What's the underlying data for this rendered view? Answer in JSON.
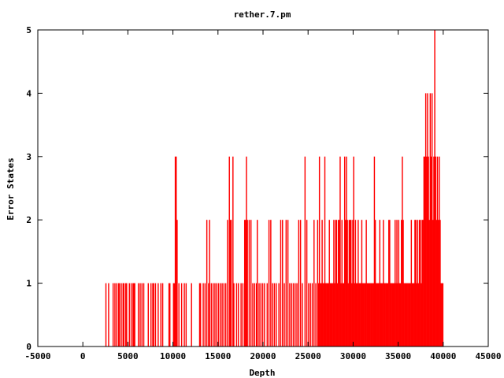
{
  "chart_data": {
    "type": "bar",
    "title": "rether.7.pm",
    "xlabel": "Depth",
    "ylabel": "Error States",
    "xlim": [
      -5000,
      45000
    ],
    "ylim": [
      0,
      5
    ],
    "xticks": [
      -5000,
      0,
      5000,
      10000,
      15000,
      20000,
      25000,
      30000,
      35000,
      40000,
      45000
    ],
    "yticks": [
      0,
      1,
      2,
      3,
      4,
      5
    ],
    "grid": false,
    "legend": "none",
    "series": [
      {
        "color": "#ff0000",
        "points": [
          [
            2500,
            1
          ],
          [
            2800,
            1
          ],
          [
            3300,
            1
          ],
          [
            3500,
            1
          ],
          [
            3700,
            1
          ],
          [
            3900,
            1
          ],
          [
            4000,
            1
          ],
          [
            4200,
            1
          ],
          [
            4400,
            1
          ],
          [
            4500,
            1
          ],
          [
            4700,
            1
          ],
          [
            4800,
            1
          ],
          [
            5100,
            1
          ],
          [
            5300,
            1
          ],
          [
            5500,
            1
          ],
          [
            5600,
            1
          ],
          [
            5700,
            1
          ],
          [
            6100,
            1
          ],
          [
            6300,
            1
          ],
          [
            6500,
            1
          ],
          [
            6700,
            1
          ],
          [
            7200,
            1
          ],
          [
            7500,
            1
          ],
          [
            7700,
            1
          ],
          [
            7800,
            1
          ],
          [
            8000,
            1
          ],
          [
            8300,
            1
          ],
          [
            8600,
            1
          ],
          [
            8800,
            1
          ],
          [
            9500,
            1
          ],
          [
            9600,
            1
          ],
          [
            10000,
            1
          ],
          [
            10100,
            1
          ],
          [
            10200,
            3
          ],
          [
            10300,
            3
          ],
          [
            10400,
            2
          ],
          [
            10600,
            1
          ],
          [
            10900,
            1
          ],
          [
            11200,
            1
          ],
          [
            11400,
            1
          ],
          [
            12000,
            1
          ],
          [
            12900,
            1
          ],
          [
            13000,
            1
          ],
          [
            13300,
            1
          ],
          [
            13500,
            1
          ],
          [
            13700,
            2
          ],
          [
            13900,
            1
          ],
          [
            14000,
            2
          ],
          [
            14200,
            1
          ],
          [
            14400,
            1
          ],
          [
            14600,
            1
          ],
          [
            14800,
            1
          ],
          [
            15000,
            1
          ],
          [
            15200,
            1
          ],
          [
            15400,
            1
          ],
          [
            15600,
            1
          ],
          [
            15800,
            1
          ],
          [
            16000,
            2
          ],
          [
            16200,
            3
          ],
          [
            16300,
            2
          ],
          [
            16400,
            2
          ],
          [
            16600,
            3
          ],
          [
            16700,
            1
          ],
          [
            17000,
            1
          ],
          [
            17200,
            1
          ],
          [
            17500,
            1
          ],
          [
            17700,
            1
          ],
          [
            17900,
            2
          ],
          [
            18000,
            2
          ],
          [
            18100,
            3
          ],
          [
            18200,
            2
          ],
          [
            18400,
            2
          ],
          [
            18600,
            2
          ],
          [
            18800,
            1
          ],
          [
            19000,
            1
          ],
          [
            19200,
            1
          ],
          [
            19300,
            2
          ],
          [
            19500,
            1
          ],
          [
            19700,
            1
          ],
          [
            19900,
            1
          ],
          [
            20100,
            1
          ],
          [
            20400,
            1
          ],
          [
            20600,
            2
          ],
          [
            20800,
            2
          ],
          [
            21000,
            1
          ],
          [
            21200,
            1
          ],
          [
            21400,
            1
          ],
          [
            21700,
            1
          ],
          [
            21900,
            2
          ],
          [
            22100,
            2
          ],
          [
            22300,
            1
          ],
          [
            22500,
            2
          ],
          [
            22700,
            2
          ],
          [
            22900,
            1
          ],
          [
            23100,
            1
          ],
          [
            23300,
            1
          ],
          [
            23500,
            1
          ],
          [
            23700,
            1
          ],
          [
            23900,
            2
          ],
          [
            24100,
            2
          ],
          [
            24300,
            1
          ],
          [
            24600,
            3
          ],
          [
            24800,
            2
          ],
          [
            25000,
            1
          ],
          [
            25200,
            1
          ],
          [
            25400,
            1
          ],
          [
            25600,
            2
          ],
          [
            25800,
            1
          ],
          [
            26000,
            2
          ],
          [
            26100,
            1
          ],
          [
            26200,
            3
          ],
          [
            26300,
            1
          ],
          [
            26400,
            1
          ],
          [
            26500,
            2
          ],
          [
            26600,
            1
          ],
          [
            26700,
            1
          ],
          [
            26800,
            3
          ],
          [
            26900,
            1
          ],
          [
            27000,
            1
          ],
          [
            27100,
            1
          ],
          [
            27200,
            1
          ],
          [
            27300,
            2
          ],
          [
            27400,
            1
          ],
          [
            27500,
            1
          ],
          [
            27600,
            1
          ],
          [
            27700,
            1
          ],
          [
            27800,
            2
          ],
          [
            27900,
            1
          ],
          [
            28000,
            2
          ],
          [
            28100,
            2
          ],
          [
            28200,
            1
          ],
          [
            28300,
            2
          ],
          [
            28400,
            2
          ],
          [
            28500,
            3
          ],
          [
            28600,
            1
          ],
          [
            28700,
            2
          ],
          [
            28800,
            1
          ],
          [
            28900,
            1
          ],
          [
            29000,
            3
          ],
          [
            29100,
            2
          ],
          [
            29200,
            3
          ],
          [
            29300,
            2
          ],
          [
            29400,
            1
          ],
          [
            29500,
            2
          ],
          [
            29600,
            2
          ],
          [
            29700,
            2
          ],
          [
            29800,
            1
          ],
          [
            29900,
            2
          ],
          [
            30000,
            3
          ],
          [
            30100,
            1
          ],
          [
            30200,
            2
          ],
          [
            30300,
            1
          ],
          [
            30400,
            1
          ],
          [
            30500,
            2
          ],
          [
            30600,
            1
          ],
          [
            30700,
            1
          ],
          [
            30800,
            1
          ],
          [
            30900,
            2
          ],
          [
            31000,
            1
          ],
          [
            31100,
            1
          ],
          [
            31200,
            1
          ],
          [
            31300,
            1
          ],
          [
            31400,
            2
          ],
          [
            31500,
            1
          ],
          [
            31600,
            1
          ],
          [
            31700,
            1
          ],
          [
            31800,
            1
          ],
          [
            31900,
            1
          ],
          [
            32000,
            1
          ],
          [
            32100,
            1
          ],
          [
            32200,
            1
          ],
          [
            32300,
            3
          ],
          [
            32400,
            2
          ],
          [
            32500,
            1
          ],
          [
            32600,
            1
          ],
          [
            32700,
            1
          ],
          [
            32800,
            1
          ],
          [
            32900,
            2
          ],
          [
            33000,
            1
          ],
          [
            33100,
            1
          ],
          [
            33200,
            1
          ],
          [
            33300,
            2
          ],
          [
            33400,
            1
          ],
          [
            33500,
            1
          ],
          [
            33600,
            1
          ],
          [
            33700,
            1
          ],
          [
            33800,
            1
          ],
          [
            33900,
            2
          ],
          [
            34000,
            2
          ],
          [
            34100,
            1
          ],
          [
            34200,
            1
          ],
          [
            34300,
            1
          ],
          [
            34400,
            1
          ],
          [
            34500,
            1
          ],
          [
            34600,
            2
          ],
          [
            34700,
            1
          ],
          [
            34800,
            2
          ],
          [
            34900,
            1
          ],
          [
            35000,
            2
          ],
          [
            35100,
            1
          ],
          [
            35200,
            1
          ],
          [
            35300,
            2
          ],
          [
            35400,
            3
          ],
          [
            35500,
            2
          ],
          [
            35600,
            1
          ],
          [
            35700,
            1
          ],
          [
            35800,
            1
          ],
          [
            35900,
            1
          ],
          [
            36000,
            1
          ],
          [
            36100,
            1
          ],
          [
            36200,
            1
          ],
          [
            36300,
            1
          ],
          [
            36400,
            2
          ],
          [
            36500,
            1
          ],
          [
            36600,
            1
          ],
          [
            36700,
            1
          ],
          [
            36800,
            2
          ],
          [
            36900,
            2
          ],
          [
            37000,
            1
          ],
          [
            37100,
            2
          ],
          [
            37200,
            1
          ],
          [
            37300,
            2
          ],
          [
            37400,
            2
          ],
          [
            37500,
            1
          ],
          [
            37600,
            2
          ],
          [
            37700,
            2
          ],
          [
            37800,
            3
          ],
          [
            37900,
            3
          ],
          [
            38000,
            4
          ],
          [
            38100,
            3
          ],
          [
            38200,
            4
          ],
          [
            38300,
            3
          ],
          [
            38400,
            2
          ],
          [
            38500,
            4
          ],
          [
            38600,
            3
          ],
          [
            38700,
            4
          ],
          [
            38800,
            2
          ],
          [
            38900,
            3
          ],
          [
            39000,
            5
          ],
          [
            39100,
            3
          ],
          [
            39200,
            2
          ],
          [
            39300,
            3
          ],
          [
            39400,
            2
          ],
          [
            39500,
            3
          ],
          [
            39600,
            2
          ],
          [
            39700,
            1
          ],
          [
            39800,
            1
          ],
          [
            39900,
            1
          ]
        ]
      }
    ]
  }
}
